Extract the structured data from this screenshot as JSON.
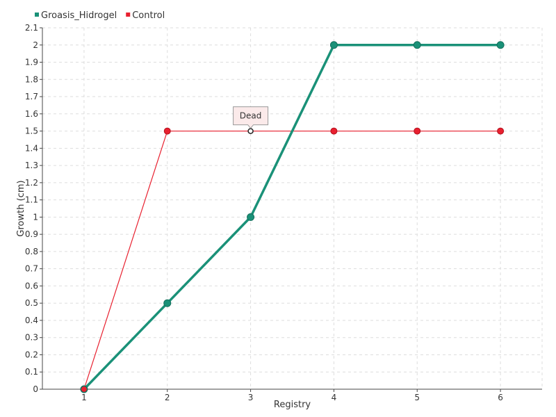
{
  "chart_data": {
    "type": "line",
    "xlabel": "Registry",
    "ylabel": "Growth (cm)",
    "x": [
      1,
      2,
      3,
      4,
      5,
      6
    ],
    "y_ticks": [
      "0",
      "0.1",
      "0.2",
      "0.3",
      "0.4",
      "0.5",
      "0.6",
      "0.7",
      "0.8",
      "0.9",
      "1",
      "1.1",
      "1.2",
      "1.3",
      "1.4",
      "1.5",
      "1.6",
      "1.7",
      "1.8",
      "1.9",
      "2",
      "2.1"
    ],
    "ylim": [
      0,
      2.1
    ],
    "xlim": [
      0.5,
      6.5
    ],
    "grid": true,
    "legend_position": "top-left",
    "series": [
      {
        "name": "Groasis_Hidrogel",
        "color": "#1a9178",
        "values": [
          0,
          0.5,
          1,
          2,
          2,
          2
        ]
      },
      {
        "name": "Control",
        "color": "#e8202f",
        "values": [
          0,
          1.5,
          1.5,
          1.5,
          1.5,
          1.5
        ]
      }
    ],
    "annotations": [
      {
        "series": "Control",
        "x": 3,
        "y": 1.5,
        "text": "Dead"
      }
    ]
  }
}
